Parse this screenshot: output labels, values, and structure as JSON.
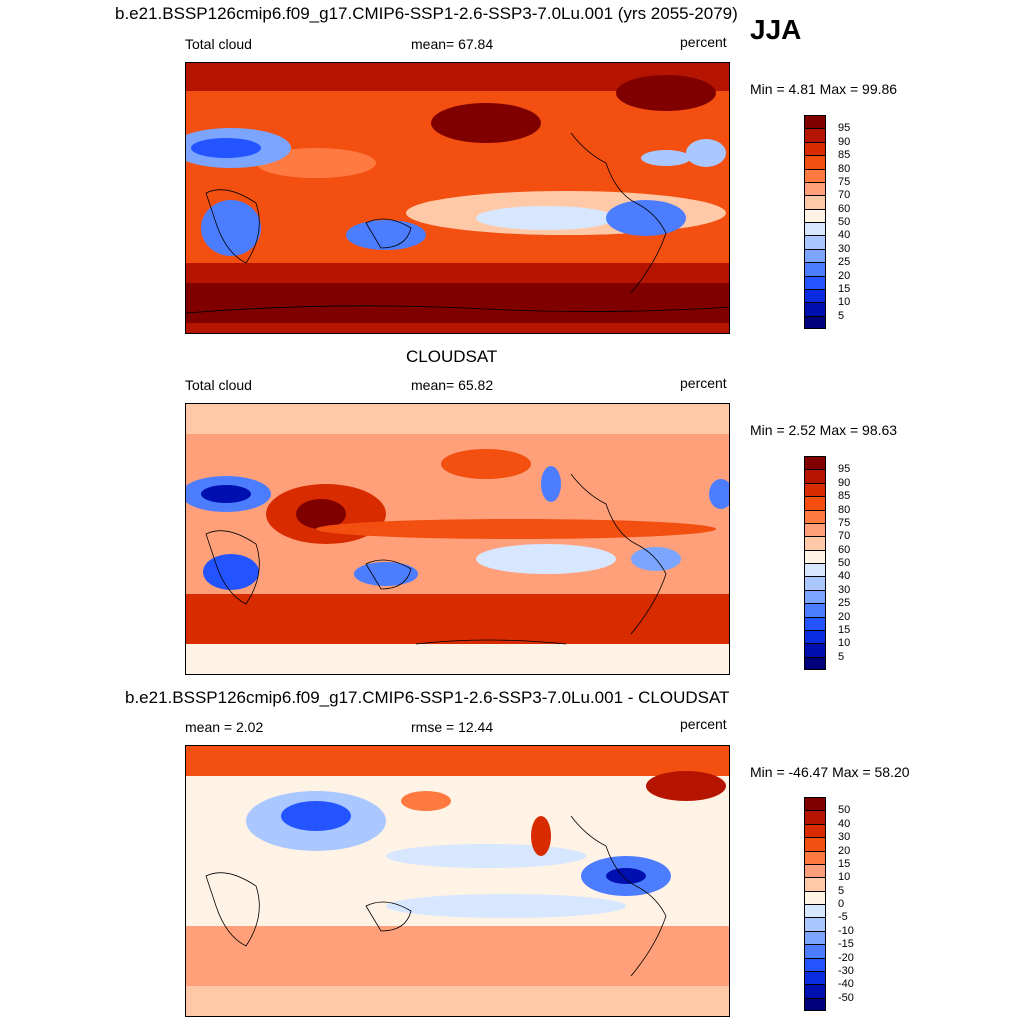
{
  "season": "JJA",
  "panels": [
    {
      "id": "model",
      "title": "b.e21.BSSP126cmip6.f09_g17.CMIP6-SSP1-2.6-SSP3-7.0Lu.001 (yrs 2055-2079)",
      "left_label": "Total cloud",
      "stat_label": "mean=  67.84",
      "units": "percent",
      "minmax": "Min =   4.81 Max =  99.86",
      "colorbar": {
        "labels": [
          "95",
          "90",
          "85",
          "80",
          "75",
          "70",
          "60",
          "50",
          "40",
          "30",
          "25",
          "20",
          "15",
          "10",
          "5"
        ],
        "colors": [
          "#800000",
          "#b51500",
          "#d82b00",
          "#f24f10",
          "#ff7a40",
          "#ffa07a",
          "#ffc9a8",
          "#fff3e6",
          "#d6e7ff",
          "#aac8ff",
          "#7ba5ff",
          "#4d7dff",
          "#2354ff",
          "#0a2be0",
          "#0010b0",
          "#00007a"
        ]
      }
    },
    {
      "id": "obs",
      "title": "CLOUDSAT",
      "left_label": "Total cloud",
      "stat_label": "mean=  65.82",
      "units": "percent",
      "minmax": "Min =   2.52 Max =  98.63",
      "colorbar": {
        "labels": [
          "95",
          "90",
          "85",
          "80",
          "75",
          "70",
          "60",
          "50",
          "40",
          "30",
          "25",
          "20",
          "15",
          "10",
          "5"
        ],
        "colors": [
          "#800000",
          "#b51500",
          "#d82b00",
          "#f24f10",
          "#ff7a40",
          "#ffa07a",
          "#ffc9a8",
          "#fff3e6",
          "#d6e7ff",
          "#aac8ff",
          "#7ba5ff",
          "#4d7dff",
          "#2354ff",
          "#0a2be0",
          "#0010b0",
          "#00007a"
        ]
      }
    },
    {
      "id": "diff",
      "title": "b.e21.BSSP126cmip6.f09_g17.CMIP6-SSP1-2.6-SSP3-7.0Lu.001 - CLOUDSAT",
      "left_label": "mean =   2.02",
      "stat_label": "rmse =  12.44",
      "units": "percent",
      "minmax": "Min = -46.47 Max =  58.20",
      "colorbar": {
        "labels": [
          "50",
          "40",
          "30",
          "20",
          "15",
          "10",
          "5",
          "0",
          "-5",
          "-10",
          "-15",
          "-20",
          "-30",
          "-40",
          "-50"
        ],
        "colors": [
          "#800000",
          "#b51500",
          "#d82b00",
          "#f24f10",
          "#ff7a40",
          "#ffa07a",
          "#ffc9a8",
          "#fff3e6",
          "#d6e7ff",
          "#aac8ff",
          "#7ba5ff",
          "#4d7dff",
          "#2354ff",
          "#0a2be0",
          "#0010b0",
          "#00007a"
        ]
      }
    }
  ]
}
